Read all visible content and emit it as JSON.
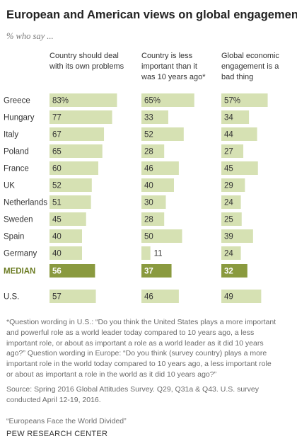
{
  "title": "European and American views on global engagement",
  "subtitle": "% who say ...",
  "colors": {
    "bar": "#d6e1b3",
    "median_bar": "#8a9a3f",
    "median_text": "#ffffff",
    "median_label": "#6c7c23"
  },
  "chart_data": {
    "type": "bar",
    "categories": [
      "Greece",
      "Hungary",
      "Italy",
      "Poland",
      "France",
      "UK",
      "Netherlands",
      "Sweden",
      "Spain",
      "Germany",
      "MEDIAN",
      "U.S."
    ],
    "series": [
      {
        "name": "Country should deal with its own problems",
        "values": [
          83,
          77,
          67,
          65,
          60,
          52,
          51,
          45,
          40,
          40,
          56,
          57
        ]
      },
      {
        "name": "Country is less important than it was 10 years ago*",
        "values": [
          65,
          33,
          52,
          28,
          46,
          40,
          30,
          28,
          50,
          11,
          37,
          46
        ]
      },
      {
        "name": "Global economic engagement is a bad thing",
        "values": [
          57,
          34,
          44,
          27,
          45,
          29,
          24,
          25,
          39,
          24,
          32,
          49
        ]
      }
    ],
    "first_row_suffix": "%",
    "highlight_category": "MEDIAN"
  },
  "column_headers": [
    [
      "Country should deal",
      "with its own problems"
    ],
    [
      "Country is less",
      "important than it",
      "was 10 years ago*"
    ],
    [
      "Global economic",
      "engagement is a",
      "bad thing"
    ]
  ],
  "note_lines": [
    "*Question wording in U.S.: “Do you think the United States plays a more important",
    "and powerful role as a world leader today compared to 10 years ago, a less",
    "important role, or about as important a role as a world leader as it did 10 years",
    "ago?” Question wording in Europe: “Do you think (survey country) plays a more",
    "important role in the world today compared to 10 years ago, a less important role",
    "or about as important a role in the world as it did 10 years ago?”"
  ],
  "source_lines": [
    "Source: Spring 2016 Global Attitudes Survey. Q29, Q31a & Q43. U.S. survey",
    "conducted April 12-19, 2016."
  ],
  "report": "“Europeans Face the World Divided”",
  "brand": "PEW RESEARCH CENTER"
}
